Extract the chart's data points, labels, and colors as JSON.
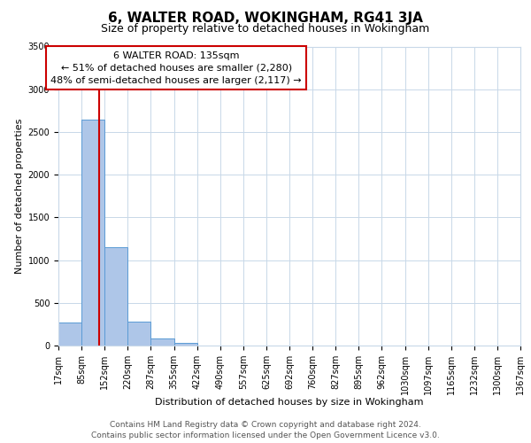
{
  "title": "6, WALTER ROAD, WOKINGHAM, RG41 3JA",
  "subtitle": "Size of property relative to detached houses in Wokingham",
  "xlabel": "Distribution of detached houses by size in Wokingham",
  "ylabel": "Number of detached properties",
  "bar_heights": [
    270,
    2640,
    1150,
    275,
    80,
    35,
    0,
    0,
    0,
    0,
    0,
    0,
    0,
    0,
    0,
    0,
    0,
    0,
    0,
    0
  ],
  "bin_edges": [
    17,
    85,
    152,
    220,
    287,
    355,
    422,
    490,
    557,
    625,
    692,
    760,
    827,
    895,
    962,
    1030,
    1097,
    1165,
    1232,
    1300,
    1367
  ],
  "bin_labels": [
    "17sqm",
    "85sqm",
    "152sqm",
    "220sqm",
    "287sqm",
    "355sqm",
    "422sqm",
    "490sqm",
    "557sqm",
    "625sqm",
    "692sqm",
    "760sqm",
    "827sqm",
    "895sqm",
    "962sqm",
    "1030sqm",
    "1097sqm",
    "1165sqm",
    "1232sqm",
    "1300sqm",
    "1367sqm"
  ],
  "property_size": 135,
  "bar_color": "#aec6e8",
  "bar_edge_color": "#5b9bd5",
  "vline_color": "#cc0000",
  "annotation_box_color": "#cc0000",
  "annotation_text_line1": "6 WALTER ROAD: 135sqm",
  "annotation_text_line2": "← 51% of detached houses are smaller (2,280)",
  "annotation_text_line3": "48% of semi-detached houses are larger (2,117) →",
  "ylim": [
    0,
    3500
  ],
  "yticks": [
    0,
    500,
    1000,
    1500,
    2000,
    2500,
    3000,
    3500
  ],
  "footer_line1": "Contains HM Land Registry data © Crown copyright and database right 2024.",
  "footer_line2": "Contains public sector information licensed under the Open Government Licence v3.0.",
  "background_color": "#ffffff",
  "grid_color": "#c8d8e8",
  "title_fontsize": 11,
  "subtitle_fontsize": 9,
  "axis_label_fontsize": 8,
  "tick_fontsize": 7,
  "annotation_fontsize": 8,
  "footer_fontsize": 6.5
}
